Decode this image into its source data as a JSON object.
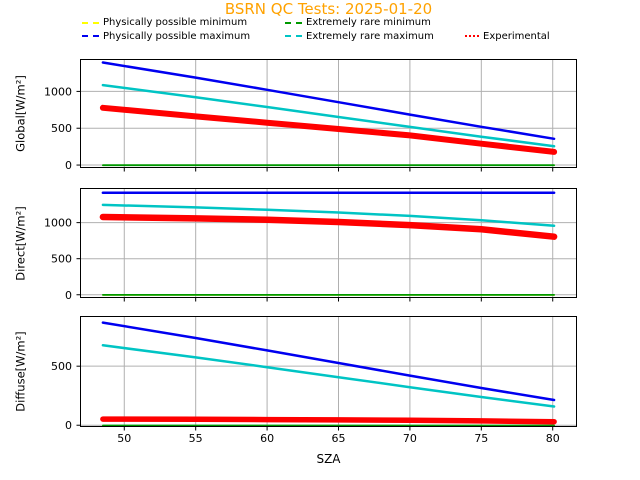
{
  "title": {
    "text": "BSRN QC Tests: 2025-01-20",
    "color": "#ffa200"
  },
  "legend": {
    "entries": [
      {
        "label": "Physically possible minimum",
        "color": "#ffff00",
        "dash": "dashed"
      },
      {
        "label": "Physically possible maximum",
        "color": "#0000f0",
        "dash": "dashed"
      },
      {
        "label": "Extremely rare minimum",
        "color": "#009900",
        "dash": "dashed"
      },
      {
        "label": "Extremely rare maximum",
        "color": "#00c4c4",
        "dash": "dashed"
      },
      {
        "label": "Experimental",
        "color": "#ff0000",
        "dash": "dotted"
      }
    ]
  },
  "x_axis": {
    "label": "SZA",
    "lim": [
      46.9,
      81.7
    ],
    "ticks": [
      50,
      55,
      60,
      65,
      70,
      75,
      80
    ]
  },
  "style": {
    "grid_color": "#b0b0b0",
    "spine_color": "#000000"
  },
  "chart_data": [
    {
      "type": "line",
      "title": "BSRN QC Tests: 2025-01-20",
      "xlabel": "SZA",
      "ylabel": "Global[W/m²]",
      "ylim": [
        -40,
        1440
      ],
      "yticks": [
        0,
        500,
        1000
      ],
      "grid": true,
      "legend_position": "above-figure",
      "x": [
        48.5,
        55,
        60,
        65,
        70,
        75,
        80.1
      ],
      "series": [
        {
          "name": "Physically possible minimum",
          "color": "#ffff00",
          "width": 1.5,
          "y": [
            -4,
            -4,
            -4,
            -4,
            -4,
            -4,
            -4
          ]
        },
        {
          "name": "Physically possible maximum",
          "color": "#0000f0",
          "width": 2.5,
          "y": [
            1393,
            1188,
            1022,
            854,
            685,
            519,
            357
          ]
        },
        {
          "name": "Extremely rare minimum",
          "color": "#009900",
          "width": 1.8,
          "y": [
            -2,
            -2,
            -2,
            -2,
            -2,
            -2,
            -2
          ]
        },
        {
          "name": "Extremely rare maximum",
          "color": "#00c4c4",
          "width": 2.5,
          "y": [
            1085,
            920,
            788,
            653,
            518,
            385,
            256
          ]
        },
        {
          "name": "Experimental",
          "color": "#ff0000",
          "width": 6,
          "y": [
            778,
            660,
            575,
            490,
            402,
            290,
            178
          ]
        }
      ]
    },
    {
      "type": "line",
      "ylabel": "Direct[W/m²]",
      "ylim": [
        -45,
        1480
      ],
      "yticks": [
        0,
        500,
        1000
      ],
      "grid": true,
      "x": [
        48.5,
        55,
        60,
        65,
        70,
        75,
        80.1
      ],
      "series": [
        {
          "name": "Physically possible minimum",
          "color": "#ffff00",
          "width": 1.5,
          "y": [
            -4,
            -4,
            -4,
            -4,
            -4,
            -4,
            -4
          ]
        },
        {
          "name": "Physically possible maximum",
          "color": "#0000f0",
          "width": 2.5,
          "y": [
            1413,
            1413,
            1413,
            1413,
            1413,
            1413,
            1413
          ]
        },
        {
          "name": "Extremely rare minimum",
          "color": "#009900",
          "width": 1.8,
          "y": [
            -2,
            -2,
            -2,
            -2,
            -2,
            -2,
            -2
          ]
        },
        {
          "name": "Extremely rare maximum",
          "color": "#00c4c4",
          "width": 2.5,
          "y": [
            1246,
            1211,
            1178,
            1140,
            1093,
            1034,
            956
          ]
        },
        {
          "name": "Experimental",
          "color": "#ff0000",
          "width": 6.5,
          "y": [
            1078,
            1058,
            1040,
            1008,
            965,
            908,
            805
          ]
        }
      ]
    },
    {
      "type": "line",
      "ylabel": "Diffuse[W/m²]",
      "ylim": [
        -15,
        925
      ],
      "yticks": [
        0,
        500
      ],
      "grid": true,
      "x": [
        48.5,
        55,
        60,
        65,
        70,
        75,
        80.1
      ],
      "series": [
        {
          "name": "Physically possible minimum",
          "color": "#ffff00",
          "width": 1.5,
          "y": [
            -4,
            -4,
            -4,
            -4,
            -4,
            -4,
            -4
          ]
        },
        {
          "name": "Physically possible maximum",
          "color": "#0000f0",
          "width": 2.5,
          "y": [
            869,
            739,
            634,
            527,
            420,
            315,
            214
          ]
        },
        {
          "name": "Extremely rare minimum",
          "color": "#009900",
          "width": 1.8,
          "y": [
            -2,
            -2,
            -2,
            -2,
            -2,
            -2,
            -2
          ]
        },
        {
          "name": "Extremely rare maximum",
          "color": "#00c4c4",
          "width": 2.5,
          "y": [
            677,
            574,
            491,
            407,
            322,
            239,
            159
          ]
        },
        {
          "name": "Experimental",
          "color": "#ff0000",
          "width": 5.5,
          "y": [
            52,
            50,
            48,
            45,
            42,
            37,
            30
          ]
        }
      ]
    }
  ]
}
